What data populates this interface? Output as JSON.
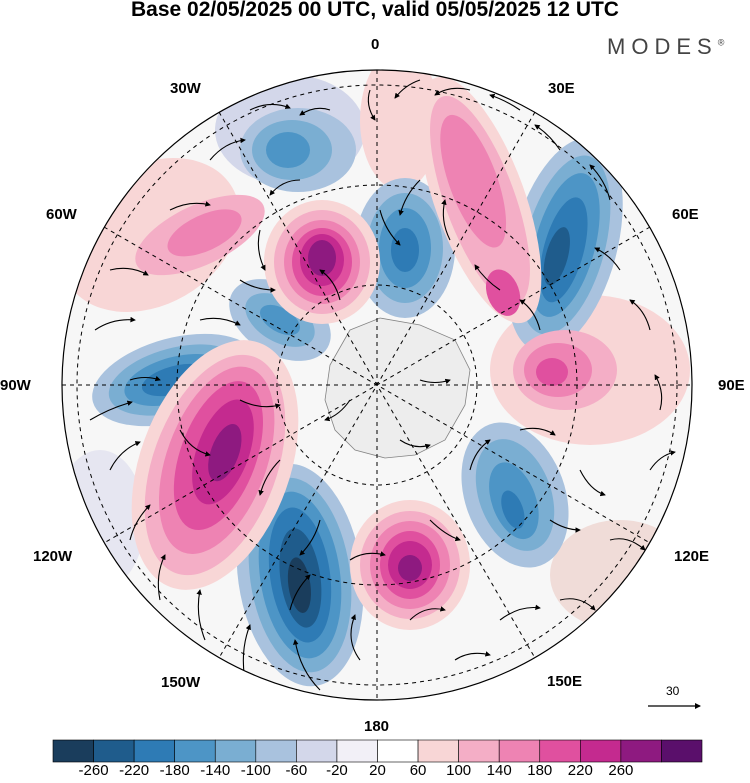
{
  "header": {
    "title": "Base 02/05/2025 00 UTC, valid 05/05/2025 12 UTC",
    "brand": "MODES",
    "brand_mark": "®"
  },
  "map": {
    "projection": "south-polar-stereographic",
    "longitude_labels": {
      "top": "0",
      "upper_right": "30E",
      "right_upper": "60E",
      "right": "90E",
      "right_lower": "120E",
      "lower_right": "150E",
      "bottom": "180",
      "lower_left": "150W",
      "left_lower": "120W",
      "left": "90W",
      "left_upper": "60W",
      "upper_left": "30W"
    },
    "vector_reference": {
      "label": "30"
    }
  },
  "colorbar": {
    "ticks": [
      "-260",
      "-220",
      "-180",
      "-140",
      "-100",
      "-60",
      "-20",
      "20",
      "60",
      "100",
      "140",
      "180",
      "220",
      "260"
    ],
    "colors": [
      "#1a3d5c",
      "#1f5c8c",
      "#2e7bb5",
      "#4d95c6",
      "#7aaed2",
      "#a9c2de",
      "#d3d7ea",
      "#f2f0f7",
      "#ffffff",
      "#f8d6d6",
      "#f4aec6",
      "#ee83b3",
      "#e0509f",
      "#c42a8f",
      "#8e1a80",
      "#5a0f6b"
    ]
  },
  "anomaly_centers": [
    {
      "kind": "positive",
      "value": 260,
      "lonlat": "60W-90W"
    },
    {
      "kind": "negative",
      "value": -220,
      "lonlat": "150W-180"
    },
    {
      "kind": "positive",
      "value": 260,
      "lonlat": "150E-180"
    },
    {
      "kind": "negative",
      "value": -220,
      "lonlat": "30E-60E"
    },
    {
      "kind": "negative",
      "value": -180,
      "lonlat": "0-30E"
    },
    {
      "kind": "positive",
      "value": 180,
      "lonlat": "0-30E"
    },
    {
      "kind": "negative",
      "value": -180,
      "lonlat": "90W"
    },
    {
      "kind": "positive",
      "value": 220,
      "lonlat": "30W-60W"
    },
    {
      "kind": "negative",
      "value": -140,
      "lonlat": "120E-150E"
    },
    {
      "kind": "positive",
      "value": 140,
      "lonlat": "90E"
    }
  ]
}
